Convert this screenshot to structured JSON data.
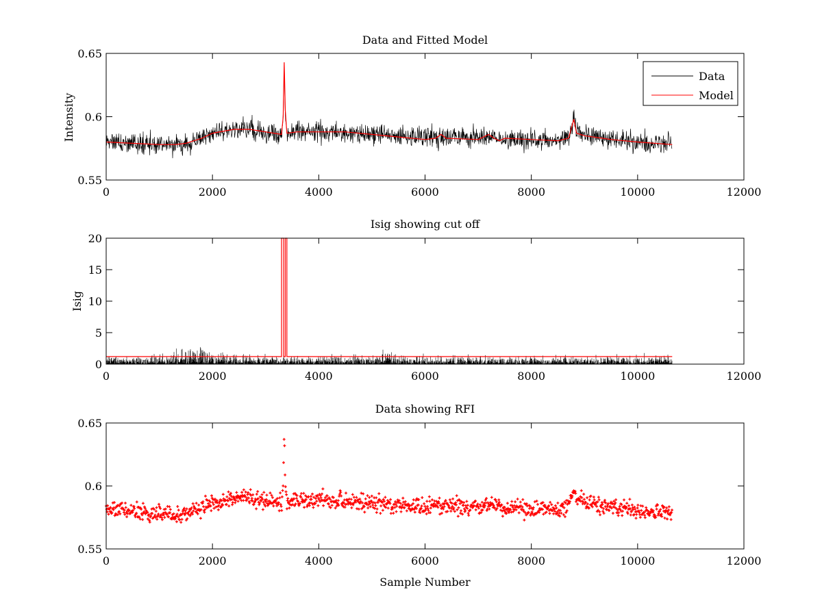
{
  "chart_data": [
    {
      "type": "line",
      "title": "Data and Fitted Model",
      "xlabel": "",
      "ylabel": "Intensity",
      "xlim": [
        0,
        12000
      ],
      "ylim": [
        0.55,
        0.65
      ],
      "xticks": [
        0,
        2000,
        4000,
        6000,
        8000,
        10000,
        12000
      ],
      "yticks": [
        0.55,
        0.6,
        0.65
      ],
      "xtick_labels": [
        "0",
        "2000",
        "4000",
        "6000",
        "8000",
        "10000",
        "12000"
      ],
      "ytick_labels": [
        "0.55",
        "0.6",
        "0.65"
      ],
      "legend": {
        "position": "top-right",
        "entries": [
          "Data",
          "Model"
        ]
      },
      "colors": {
        "data": "#000000",
        "model": "#ff0000"
      },
      "series": [
        {
          "name": "Data",
          "noise": 0.0055,
          "x": [
            0,
            500,
            1000,
            1300,
            1500,
            1800,
            2000,
            2400,
            2700,
            3000,
            3300,
            3330,
            3350,
            3370,
            3400,
            3600,
            4000,
            4500,
            5000,
            5500,
            6000,
            6200,
            6400,
            7000,
            7200,
            7300,
            7500,
            8000,
            8500,
            8700,
            8800,
            8850,
            9000,
            9500,
            10000,
            10650
          ],
          "values": [
            0.58,
            0.579,
            0.578,
            0.577,
            0.578,
            0.583,
            0.587,
            0.59,
            0.59,
            0.587,
            0.586,
            0.6,
            0.643,
            0.6,
            0.587,
            0.588,
            0.588,
            0.587,
            0.586,
            0.584,
            0.583,
            0.584,
            0.584,
            0.583,
            0.585,
            0.584,
            0.582,
            0.582,
            0.582,
            0.584,
            0.597,
            0.588,
            0.586,
            0.582,
            0.58,
            0.578
          ]
        },
        {
          "name": "Model",
          "x": [
            0,
            500,
            1000,
            1300,
            1500,
            1800,
            2000,
            2400,
            2700,
            3000,
            3300,
            3330,
            3350,
            3370,
            3400,
            3600,
            4000,
            4500,
            5000,
            5500,
            6000,
            6200,
            6300,
            6400,
            7000,
            7200,
            7300,
            7400,
            7500,
            8000,
            8500,
            8700,
            8800,
            8850,
            9000,
            9500,
            10000,
            10650
          ],
          "values": [
            0.58,
            0.579,
            0.578,
            0.578,
            0.579,
            0.583,
            0.587,
            0.59,
            0.59,
            0.588,
            0.586,
            0.6,
            0.643,
            0.605,
            0.587,
            0.588,
            0.588,
            0.588,
            0.586,
            0.584,
            0.582,
            0.583,
            0.586,
            0.583,
            0.582,
            0.586,
            0.583,
            0.581,
            0.583,
            0.582,
            0.581,
            0.583,
            0.598,
            0.587,
            0.585,
            0.582,
            0.58,
            0.578
          ]
        }
      ]
    },
    {
      "type": "line",
      "title": "Isig showing cut off",
      "xlabel": "",
      "ylabel": "Isig",
      "xlim": [
        0,
        12000
      ],
      "ylim": [
        0,
        20
      ],
      "xticks": [
        0,
        2000,
        4000,
        6000,
        8000,
        10000,
        12000
      ],
      "yticks": [
        0,
        5,
        10,
        15,
        20
      ],
      "xtick_labels": [
        "0",
        "2000",
        "4000",
        "6000",
        "8000",
        "10000",
        "12000"
      ],
      "ytick_labels": [
        "0",
        "5",
        "10",
        "15",
        "20"
      ],
      "colors": {
        "data": "#000000",
        "cutoff": "#ff0000"
      },
      "series": [
        {
          "name": "Isig",
          "x": [
            0,
            1000,
            1300,
            1500,
            1700,
            1800,
            2000,
            2500,
            3000,
            4000,
            5000,
            5300,
            5500,
            6000,
            8000,
            10000,
            10650
          ],
          "values": [
            1.5,
            1.6,
            2.6,
            3.2,
            3.6,
            3.3,
            2.3,
            1.8,
            1.6,
            1.6,
            1.8,
            2.4,
            1.7,
            1.5,
            1.5,
            1.6,
            1.5
          ]
        },
        {
          "name": "Cut off",
          "x": [
            0,
            3300,
            3300,
            3340,
            3340,
            3370,
            3370,
            3400,
            3400,
            10650
          ],
          "values": [
            1.2,
            1.2,
            20,
            20,
            1.2,
            1.2,
            20,
            20,
            1.2,
            1.2
          ]
        }
      ]
    },
    {
      "type": "scatter",
      "title": "Data showing RFI",
      "xlabel": "Sample Number",
      "ylabel": "",
      "xlim": [
        0,
        12000
      ],
      "ylim": [
        0.55,
        0.65
      ],
      "xticks": [
        0,
        2000,
        4000,
        6000,
        8000,
        10000,
        12000
      ],
      "yticks": [
        0.55,
        0.6,
        0.65
      ],
      "xtick_labels": [
        "0",
        "2000",
        "4000",
        "6000",
        "8000",
        "10000",
        "12000"
      ],
      "ytick_labels": [
        "0.55",
        "0.6",
        "0.65"
      ],
      "colors": {
        "points": "#ff0000"
      },
      "series": [
        {
          "name": "Data",
          "noise": 0.0045,
          "x": [
            0,
            500,
            1000,
            1300,
            1500,
            1800,
            2000,
            2400,
            2700,
            3000,
            3300,
            3330,
            3350,
            3370,
            3400,
            3600,
            4000,
            4500,
            5000,
            5500,
            6000,
            6200,
            6400,
            7000,
            7200,
            7300,
            7500,
            8000,
            8500,
            8700,
            8800,
            8850,
            9000,
            9500,
            10000,
            10650
          ],
          "values": [
            0.581,
            0.58,
            0.578,
            0.576,
            0.578,
            0.583,
            0.587,
            0.59,
            0.591,
            0.588,
            0.587,
            0.6,
            0.643,
            0.6,
            0.588,
            0.588,
            0.589,
            0.588,
            0.586,
            0.585,
            0.583,
            0.584,
            0.584,
            0.583,
            0.585,
            0.584,
            0.582,
            0.582,
            0.581,
            0.584,
            0.598,
            0.589,
            0.587,
            0.583,
            0.58,
            0.578
          ]
        }
      ]
    }
  ]
}
